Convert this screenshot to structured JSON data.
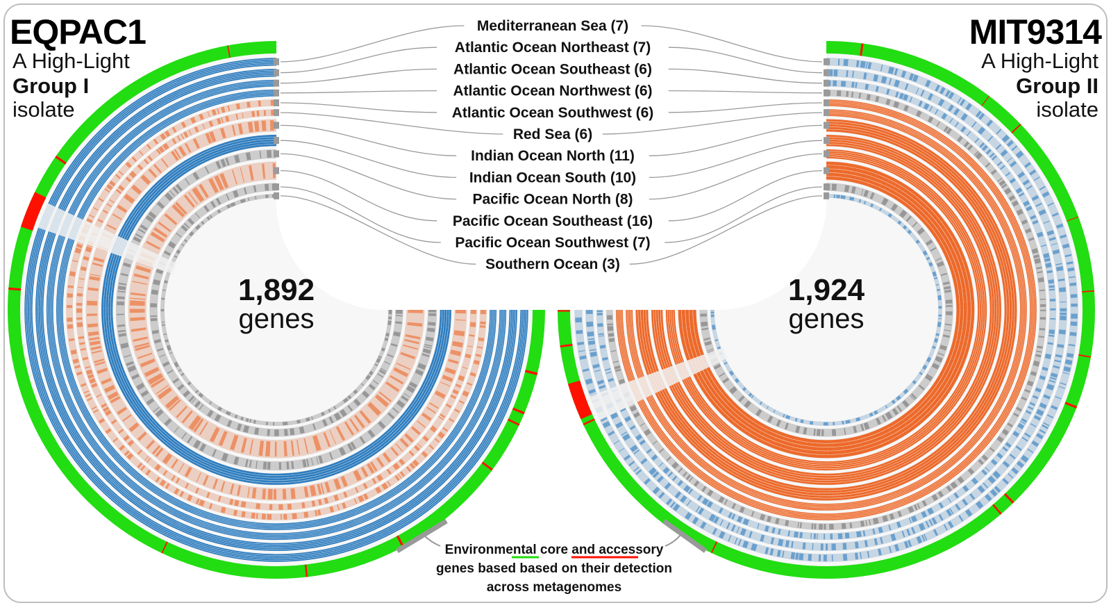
{
  "colors": {
    "core": "#22dd11",
    "accessory": "#ff1100",
    "group_i": "#1f74bb",
    "group_ii": "#ec5f1c",
    "missing": "#eeeeee",
    "connector": "#999999"
  },
  "left_genome": {
    "name": "EQPAC1",
    "subtitle_line1": "A High-Light",
    "subtitle_line2": "Group I",
    "subtitle_line3": "isolate",
    "gene_count": "1,892",
    "gene_unit": "genes",
    "accessory_fraction": 0.06
  },
  "right_genome": {
    "name": "MIT9314",
    "subtitle_line1": "A High-Light",
    "subtitle_line2": "Group II",
    "subtitle_line3": "isolate",
    "gene_count": "1,924",
    "gene_unit": "genes",
    "accessory_fraction": 0.08
  },
  "layers": [
    {
      "label": "Mediterranean Sea (7)",
      "n": 7,
      "left": "blue",
      "right": "blue-sparse"
    },
    {
      "label": "Atlantic Ocean Northeast (7)",
      "n": 7,
      "left": "blue",
      "right": "blue-sparse"
    },
    {
      "label": "Atlantic Ocean Southeast (6)",
      "n": 6,
      "left": "blue",
      "right": "blue-sparse"
    },
    {
      "label": "Atlantic Ocean Northwest (6)",
      "n": 6,
      "left": "blue",
      "right": "mixed"
    },
    {
      "label": "Atlantic Ocean Southwest (6)",
      "n": 6,
      "left": "orange-sparse",
      "right": "orange"
    },
    {
      "label": "Red Sea (6)",
      "n": 6,
      "left": "orange-sparse",
      "right": "orange"
    },
    {
      "label": "Indian Ocean North (11)",
      "n": 11,
      "left": "orange-sparse",
      "right": "orange"
    },
    {
      "label": "Indian Ocean South (10)",
      "n": 10,
      "left": "blue",
      "right": "orange"
    },
    {
      "label": "Pacific Ocean North (8)",
      "n": 8,
      "left": "mixed",
      "right": "orange"
    },
    {
      "label": "Pacific Ocean Southeast (16)",
      "n": 16,
      "left": "orange-sparse",
      "right": "orange"
    },
    {
      "label": "Pacific Ocean Southwest (7)",
      "n": 7,
      "left": "mixed",
      "right": "mixed"
    },
    {
      "label": "Southern Ocean (3)",
      "n": 3,
      "left": "mixed",
      "right": "blue-sparse"
    }
  ],
  "annotation": {
    "line1_prefix": "Environmental ",
    "core_word": "core",
    "line1_mid": " and ",
    "accessory_word": "accessory",
    "line2": "genes based based on their detection",
    "line3": "across metagenomes"
  }
}
